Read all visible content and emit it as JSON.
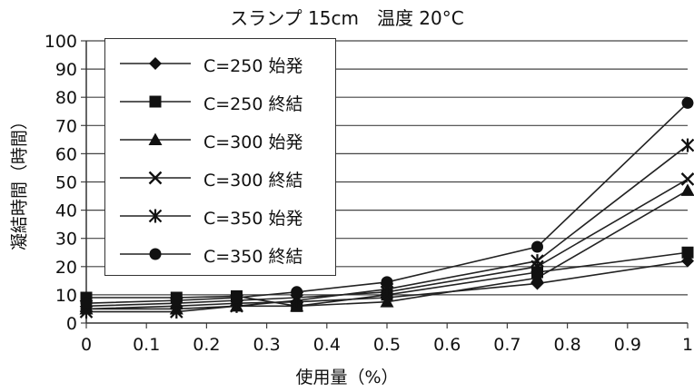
{
  "chart_data": {
    "type": "line",
    "title": "スランプ 15cm　温度 20°C",
    "xlabel": "使用量（%）",
    "ylabel": "凝結時間（時間）",
    "xlim": [
      0,
      1
    ],
    "ylim": [
      0,
      100
    ],
    "xticks": [
      "0",
      "0.1",
      "0.2",
      "0.3",
      "0.4",
      "0.5",
      "0.6",
      "0.7",
      "0.8",
      "0.9",
      "1"
    ],
    "yticks": [
      "0",
      "10",
      "20",
      "30",
      "40",
      "50",
      "60",
      "70",
      "80",
      "90",
      "100"
    ],
    "grid": "horizontal",
    "legend_position": "top-left",
    "x": [
      0,
      0.15,
      0.25,
      0.35,
      0.5,
      0.75,
      1
    ],
    "series": [
      {
        "name": "C=250 始発",
        "marker": "diamond",
        "values": [
          5,
          6,
          7,
          7.5,
          9,
          14,
          22
        ]
      },
      {
        "name": "C=250 終結",
        "marker": "square",
        "values": [
          9,
          9,
          9.5,
          6,
          10,
          18,
          25
        ]
      },
      {
        "name": "C=300 始発",
        "marker": "triangle",
        "values": [
          5,
          5,
          6,
          6,
          7.5,
          16,
          47
        ]
      },
      {
        "name": "C=300 終結",
        "marker": "x",
        "values": [
          6,
          7,
          8,
          9,
          11,
          20,
          51
        ]
      },
      {
        "name": "C=350 始発",
        "marker": "star",
        "values": [
          4,
          4,
          6,
          8,
          12,
          22,
          63
        ]
      },
      {
        "name": "C=350 終結",
        "marker": "circle",
        "values": [
          7,
          8,
          9,
          11,
          14.5,
          27,
          78
        ]
      }
    ]
  }
}
